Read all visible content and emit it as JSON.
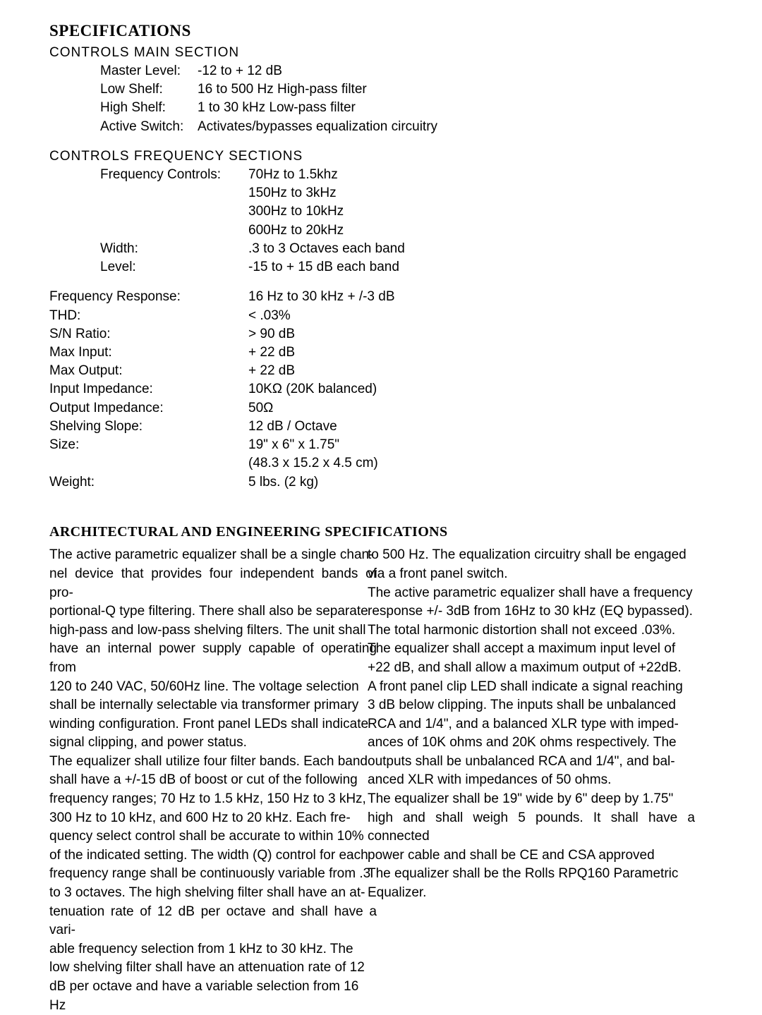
{
  "headings": {
    "specifications": "SPECIFICATIONS",
    "controls_main": "CONTROLS MAIN SECTION",
    "controls_freq": "CONTROLS FREQUENCY SECTIONS",
    "arch_eng": "ARCHITECTURAL AND ENGINEERING SPECIFICATIONS"
  },
  "main_section": [
    {
      "label": "Master Level:",
      "value": "-12 to + 12 dB"
    },
    {
      "label": "Low Shelf:",
      "value": "16 to 500 Hz High-pass filter"
    },
    {
      "label": "High Shelf:",
      "value": "1 to 30 kHz Low-pass filter"
    },
    {
      "label": "Active Switch:",
      "value": "Activates/bypasses equalization circuitry"
    }
  ],
  "freq_section": {
    "freq_label": "Frequency Controls:",
    "freq_values": [
      "70Hz to 1.5khz",
      "150Hz to 3kHz",
      "300Hz to 10kHz",
      "600Hz to 20kHz"
    ],
    "width": {
      "label": "Width:",
      "value": ".3 to 3 Octaves each band"
    },
    "level": {
      "label": "Level:",
      "value": "-15 to + 15 dB each band"
    }
  },
  "general_specs": [
    {
      "label": "Frequency Response:",
      "value": "16 Hz to 30 kHz + /-3 dB"
    },
    {
      "label": "THD:",
      "value": "< .03%"
    },
    {
      "label": "S/N Ratio:",
      "value": "> 90 dB"
    },
    {
      "label": "Max Input:",
      "value": "+ 22 dB"
    },
    {
      "label": "Max Output:",
      "value": "+ 22 dB"
    },
    {
      "label": "Input Impedance:",
      "value": "10KΩ (20K balanced)"
    },
    {
      "label": "Output Impedance:",
      "value": " 50Ω"
    },
    {
      "label": "Shelving Slope:",
      "value": " 12 dB / Octave"
    },
    {
      "label": "Size:",
      "value": "19\" x 6\" x 1.75\""
    },
    {
      "label": "",
      "value": "(48.3 x 15.2 x 4.5 cm)"
    },
    {
      "label": "Weight:",
      "value": "5 lbs. (2 kg)"
    }
  ],
  "arch_lines_left": [
    "The active parametric equalizer shall be a single chan-",
    "nel device that provides four independent bands of pro-",
    "portional-Q type filtering. There shall also be separate",
    "high-pass and low-pass shelving filters. The unit shall",
    "have an internal power supply capable of operating from",
    "120 to 240 VAC, 50/60Hz line. The voltage selection",
    "shall be internally selectable via transformer primary",
    "winding configuration. Front panel LEDs shall indicate",
    "signal clipping, and power status.",
    "The equalizer shall utilize four filter bands. Each band",
    "shall have a +/-15 dB of boost or cut of the following",
    "frequency ranges; 70 Hz to 1.5 kHz, 150 Hz to 3 kHz,",
    "300 Hz to 10 kHz, and 600 Hz to 20 kHz. Each fre-",
    "quency select control shall be accurate to within 10%",
    "of the indicated setting. The width (Q) control for each",
    "frequency range shall be continuously variable from .3",
    "to 3 octaves. The high shelving filter shall have an at-",
    "tenuation rate of 12 dB per octave and shall have a vari-",
    "able frequency selection from 1 kHz to 30 kHz. The",
    "low shelving filter shall have an attenuation rate of 12",
    "dB per octave and have a variable selection from 16 Hz"
  ],
  "arch_lines_right": [
    "to 500 Hz. The equalization circuitry shall be engaged",
    "via a front panel switch.",
    "The active parametric equalizer shall have a frequency",
    "response +/- 3dB from 16Hz to 30 kHz (EQ bypassed).",
    "The total harmonic distortion shall not exceed .03%.",
    "The equalizer shall accept a maximum input level of",
    "+22 dB, and shall allow a maximum output of +22dB.",
    "A front panel clip LED shall indicate a signal reaching",
    "3 dB below clipping. The inputs shall be unbalanced",
    "RCA and 1/4\", and a balanced XLR type with imped-",
    "ances of 10K ohms and 20K ohms respectively. The",
    "outputs shall be unbalanced RCA and 1/4\", and bal-",
    "anced XLR with impedances of 50 ohms.",
    "The equalizer shall be 19\" wide by 6\" deep by 1.75\"",
    "high and shall weigh 5 pounds. It shall have a connected",
    "power cable and shall be CE and CSA approved",
    "The equalizer shall be the Rolls RPQ160 Parametric",
    "Equalizer."
  ]
}
